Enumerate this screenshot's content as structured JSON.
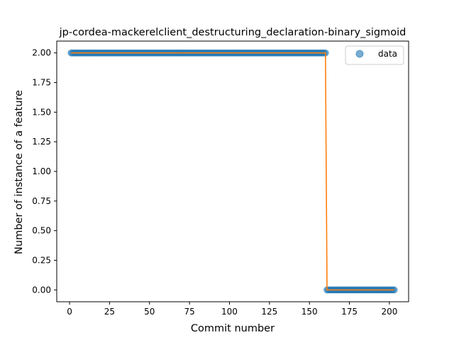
{
  "chart_data": {
    "type": "scatter",
    "title": "jp-cordea-mackerelclient_destructuring_declaration-binary_sigmoid",
    "xlabel": "Commit number",
    "ylabel": "Number of instance of a feature",
    "xlim": [
      -8,
      212
    ],
    "ylim": [
      -0.1,
      2.1
    ],
    "xticks": [
      "0",
      "25",
      "50",
      "75",
      "100",
      "125",
      "150",
      "175",
      "200"
    ],
    "yticks": [
      "0.00",
      "0.25",
      "0.50",
      "0.75",
      "1.00",
      "1.25",
      "1.50",
      "1.75",
      "2.00"
    ],
    "grid": false,
    "legend": {
      "placement": "top-right",
      "entries": [
        "data"
      ]
    },
    "series": [
      {
        "name": "data",
        "marker": "circle",
        "color": "#1f77b4",
        "segments": [
          {
            "x_start": 1,
            "x_end": 160,
            "step": 1,
            "y": 2
          },
          {
            "x_start": 161,
            "x_end": 203,
            "step": 1,
            "y": 0
          }
        ]
      },
      {
        "role": "fit-line",
        "color": "#ff7f0e",
        "x": [
          1,
          160,
          161,
          203
        ],
        "y": [
          2,
          2,
          0,
          0
        ]
      }
    ]
  }
}
